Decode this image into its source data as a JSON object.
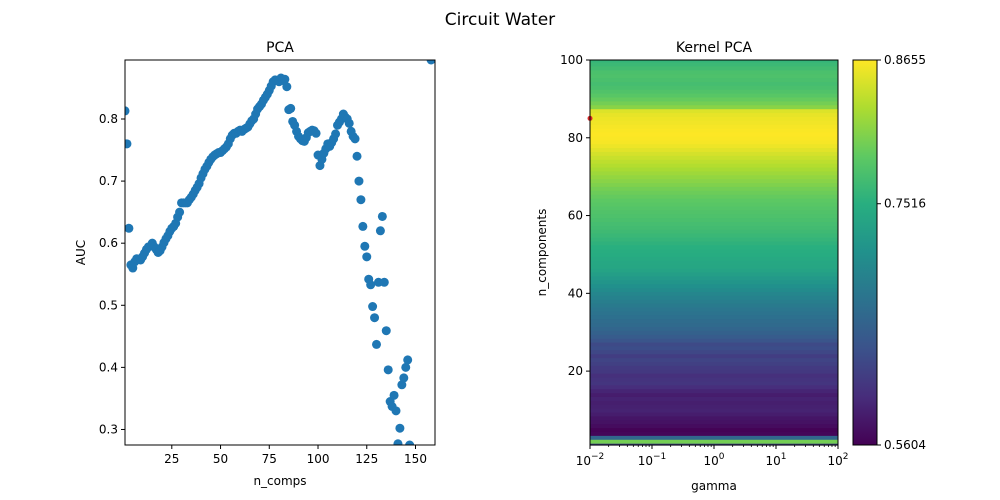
{
  "figure": {
    "title": "Circuit Water"
  },
  "chart_data": [
    {
      "type": "scatter",
      "title": "PCA",
      "xlabel": "n_comps",
      "ylabel": "AUC",
      "xlim": [
        1,
        160
      ],
      "ylim": [
        0.275,
        0.895
      ],
      "xticks": [
        25,
        50,
        75,
        100,
        125,
        150
      ],
      "yticks": [
        0.3,
        0.4,
        0.5,
        0.6,
        0.7,
        0.8
      ],
      "marker_color": "#1f77b4",
      "points": [
        [
          1,
          0.813
        ],
        [
          2,
          0.76
        ],
        [
          3,
          0.624
        ],
        [
          4,
          0.565
        ],
        [
          5,
          0.56
        ],
        [
          6,
          0.57
        ],
        [
          7,
          0.575
        ],
        [
          9,
          0.573
        ],
        [
          10,
          0.578
        ],
        [
          11,
          0.584
        ],
        [
          12,
          0.59
        ],
        [
          13,
          0.594
        ],
        [
          15,
          0.6
        ],
        [
          16,
          0.594
        ],
        [
          17,
          0.59
        ],
        [
          18,
          0.585
        ],
        [
          19,
          0.588
        ],
        [
          20,
          0.594
        ],
        [
          21,
          0.601
        ],
        [
          22,
          0.607
        ],
        [
          23,
          0.612
        ],
        [
          24,
          0.619
        ],
        [
          25,
          0.624
        ],
        [
          26,
          0.627
        ],
        [
          27,
          0.632
        ],
        [
          28,
          0.642
        ],
        [
          29,
          0.65
        ],
        [
          30,
          0.665
        ],
        [
          31,
          0.665
        ],
        [
          32,
          0.665
        ],
        [
          33,
          0.665
        ],
        [
          34,
          0.67
        ],
        [
          35,
          0.674
        ],
        [
          36,
          0.679
        ],
        [
          37,
          0.685
        ],
        [
          38,
          0.69
        ],
        [
          39,
          0.696
        ],
        [
          40,
          0.705
        ],
        [
          41,
          0.712
        ],
        [
          42,
          0.719
        ],
        [
          43,
          0.724
        ],
        [
          44,
          0.73
        ],
        [
          45,
          0.735
        ],
        [
          46,
          0.739
        ],
        [
          47,
          0.742
        ],
        [
          48,
          0.744
        ],
        [
          49,
          0.746
        ],
        [
          50,
          0.746
        ],
        [
          51,
          0.749
        ],
        [
          52,
          0.752
        ],
        [
          53,
          0.755
        ],
        [
          54,
          0.76
        ],
        [
          55,
          0.768
        ],
        [
          56,
          0.774
        ],
        [
          57,
          0.777
        ],
        [
          58,
          0.777
        ],
        [
          59,
          0.78
        ],
        [
          60,
          0.782
        ],
        [
          61,
          0.78
        ],
        [
          62,
          0.783
        ],
        [
          63,
          0.785
        ],
        [
          64,
          0.787
        ],
        [
          65,
          0.792
        ],
        [
          66,
          0.797
        ],
        [
          67,
          0.8
        ],
        [
          68,
          0.808
        ],
        [
          69,
          0.816
        ],
        [
          70,
          0.82
        ],
        [
          71,
          0.824
        ],
        [
          72,
          0.83
        ],
        [
          73,
          0.835
        ],
        [
          74,
          0.84
        ],
        [
          75,
          0.846
        ],
        [
          76,
          0.853
        ],
        [
          77,
          0.86
        ],
        [
          78,
          0.863
        ],
        [
          79,
          0.862
        ],
        [
          80,
          0.86
        ],
        [
          81,
          0.866
        ],
        [
          82,
          0.862
        ],
        [
          83,
          0.864
        ],
        [
          84,
          0.852
        ],
        [
          85,
          0.815
        ],
        [
          86,
          0.817
        ],
        [
          87,
          0.796
        ],
        [
          88,
          0.79
        ],
        [
          89,
          0.78
        ],
        [
          90,
          0.772
        ],
        [
          91,
          0.768
        ],
        [
          92,
          0.765
        ],
        [
          93,
          0.764
        ],
        [
          94,
          0.77
        ],
        [
          95,
          0.778
        ],
        [
          96,
          0.78
        ],
        [
          97,
          0.782
        ],
        [
          98,
          0.781
        ],
        [
          99,
          0.777
        ],
        [
          100,
          0.742
        ],
        [
          101,
          0.725
        ],
        [
          102,
          0.735
        ],
        [
          103,
          0.745
        ],
        [
          104,
          0.752
        ],
        [
          105,
          0.76
        ],
        [
          106,
          0.756
        ],
        [
          107,
          0.762
        ],
        [
          108,
          0.768
        ],
        [
          109,
          0.776
        ],
        [
          110,
          0.79
        ],
        [
          111,
          0.795
        ],
        [
          112,
          0.8
        ],
        [
          113,
          0.808
        ],
        [
          114,
          0.803
        ],
        [
          115,
          0.8
        ],
        [
          116,
          0.793
        ],
        [
          117,
          0.78
        ],
        [
          118,
          0.772
        ],
        [
          119,
          0.768
        ],
        [
          120,
          0.74
        ],
        [
          121,
          0.7
        ],
        [
          122,
          0.67
        ],
        [
          123,
          0.627
        ],
        [
          124,
          0.595
        ],
        [
          125,
          0.578
        ],
        [
          126,
          0.542
        ],
        [
          127,
          0.533
        ],
        [
          128,
          0.498
        ],
        [
          129,
          0.48
        ],
        [
          130,
          0.437
        ],
        [
          131,
          0.537
        ],
        [
          132,
          0.62
        ],
        [
          133,
          0.643
        ],
        [
          134,
          0.537
        ],
        [
          135,
          0.459
        ],
        [
          136,
          0.396
        ],
        [
          137,
          0.345
        ],
        [
          138,
          0.337
        ],
        [
          139,
          0.355
        ],
        [
          140,
          0.33
        ],
        [
          141,
          0.277
        ],
        [
          142,
          0.302
        ],
        [
          143,
          0.372
        ],
        [
          144,
          0.383
        ],
        [
          145,
          0.4
        ],
        [
          146,
          0.412
        ],
        [
          147,
          0.275
        ],
        [
          158,
          0.895
        ]
      ]
    },
    {
      "type": "heatmap",
      "title": "Kernel PCA",
      "xlabel": "gamma",
      "ylabel": "n_components",
      "xscale": "log",
      "xlim": [
        0.01,
        100
      ],
      "ylim": [
        1,
        100
      ],
      "yticks": [
        20,
        40,
        60,
        80,
        100
      ],
      "xticks": [
        "10^-2",
        "10^-1",
        "10^0",
        "10^1",
        "10^2"
      ],
      "colormap": "viridis",
      "colorbar": {
        "min": 0.5604,
        "max": 0.8655,
        "ticks": [
          "0.5604",
          "0.7516",
          "0.8655"
        ],
        "tick_values": [
          0.5604,
          0.7516,
          0.8655
        ]
      },
      "marker": {
        "gamma": 0.01,
        "n_components": 85,
        "color": "#d62728"
      },
      "rows": [
        [
          1,
          0.62
        ],
        [
          2,
          0.8
        ],
        [
          3,
          0.66
        ],
        [
          4,
          0.565
        ],
        [
          5,
          0.562
        ],
        [
          6,
          0.57
        ],
        [
          7,
          0.575
        ],
        [
          8,
          0.578
        ],
        [
          9,
          0.585
        ],
        [
          10,
          0.59
        ],
        [
          11,
          0.588
        ],
        [
          12,
          0.586
        ],
        [
          13,
          0.59
        ],
        [
          14,
          0.585
        ],
        [
          15,
          0.592
        ],
        [
          16,
          0.6
        ],
        [
          17,
          0.607
        ],
        [
          18,
          0.605
        ],
        [
          19,
          0.602
        ],
        [
          20,
          0.61
        ],
        [
          21,
          0.612
        ],
        [
          22,
          0.618
        ],
        [
          23,
          0.622
        ],
        [
          24,
          0.615
        ],
        [
          25,
          0.625
        ],
        [
          26,
          0.632
        ],
        [
          27,
          0.628
        ],
        [
          28,
          0.64
        ],
        [
          29,
          0.648
        ],
        [
          30,
          0.655
        ],
        [
          31,
          0.66
        ],
        [
          32,
          0.665
        ],
        [
          33,
          0.668
        ],
        [
          34,
          0.672
        ],
        [
          35,
          0.676
        ],
        [
          36,
          0.68
        ],
        [
          37,
          0.685
        ],
        [
          38,
          0.69
        ],
        [
          39,
          0.695
        ],
        [
          40,
          0.7
        ],
        [
          41,
          0.706
        ],
        [
          42,
          0.712
        ],
        [
          43,
          0.718
        ],
        [
          44,
          0.724
        ],
        [
          45,
          0.73
        ],
        [
          46,
          0.736
        ],
        [
          47,
          0.74
        ],
        [
          48,
          0.742
        ],
        [
          49,
          0.745
        ],
        [
          50,
          0.748
        ],
        [
          51,
          0.75
        ],
        [
          52,
          0.752
        ],
        [
          53,
          0.756
        ],
        [
          54,
          0.76
        ],
        [
          55,
          0.764
        ],
        [
          56,
          0.767
        ],
        [
          57,
          0.77
        ],
        [
          58,
          0.772
        ],
        [
          59,
          0.775
        ],
        [
          60,
          0.778
        ],
        [
          61,
          0.78
        ],
        [
          62,
          0.782
        ],
        [
          63,
          0.785
        ],
        [
          64,
          0.788
        ],
        [
          65,
          0.792
        ],
        [
          66,
          0.796
        ],
        [
          67,
          0.8
        ],
        [
          68,
          0.805
        ],
        [
          69,
          0.81
        ],
        [
          70,
          0.815
        ],
        [
          71,
          0.82
        ],
        [
          72,
          0.825
        ],
        [
          73,
          0.83
        ],
        [
          74,
          0.835
        ],
        [
          75,
          0.84
        ],
        [
          76,
          0.846
        ],
        [
          77,
          0.852
        ],
        [
          78,
          0.858
        ],
        [
          79,
          0.862
        ],
        [
          80,
          0.864
        ],
        [
          81,
          0.8655
        ],
        [
          82,
          0.864
        ],
        [
          83,
          0.862
        ],
        [
          84,
          0.86
        ],
        [
          85,
          0.858
        ],
        [
          86,
          0.855
        ],
        [
          87,
          0.85
        ],
        [
          88,
          0.81
        ],
        [
          89,
          0.8
        ],
        [
          90,
          0.792
        ],
        [
          91,
          0.785
        ],
        [
          92,
          0.78
        ],
        [
          93,
          0.775
        ],
        [
          94,
          0.772
        ],
        [
          95,
          0.775
        ],
        [
          96,
          0.778
        ],
        [
          97,
          0.776
        ],
        [
          98,
          0.77
        ],
        [
          99,
          0.765
        ],
        [
          100,
          0.76
        ]
      ]
    }
  ]
}
